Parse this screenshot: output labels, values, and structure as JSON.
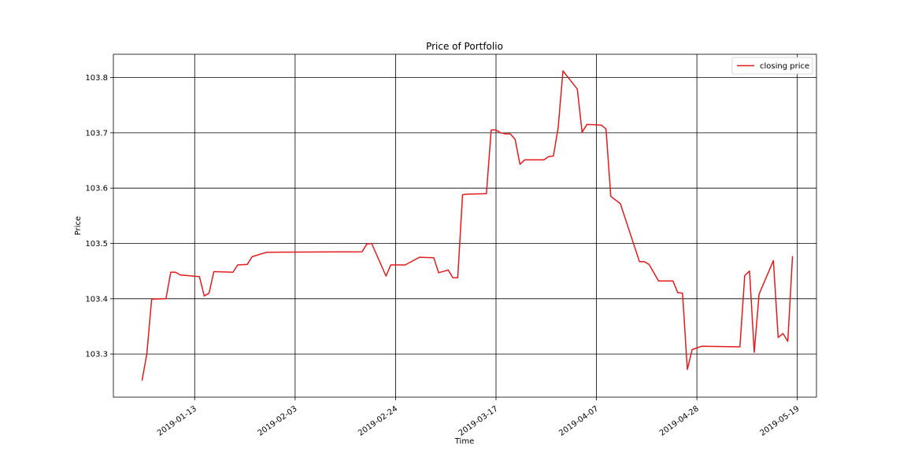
{
  "chart_data": {
    "type": "line",
    "title": "Price of Portfolio",
    "xlabel": "Time",
    "ylabel": "Price",
    "grid": true,
    "legend_position": "top-right",
    "xlim": [
      "2018-12-27",
      "2019-05-23"
    ],
    "ylim": [
      103.222,
      103.842
    ],
    "x_ticks": [
      "2019-01-13",
      "2019-02-03",
      "2019-02-24",
      "2019-03-17",
      "2019-04-07",
      "2019-04-28",
      "2019-05-19"
    ],
    "y_ticks": [
      "103.3",
      "103.4",
      "103.5",
      "103.6",
      "103.7",
      "103.8"
    ],
    "series": [
      {
        "name": "closing price",
        "color": "#e41a1c",
        "points": [
          [
            "2019-01-02",
            103.252
          ],
          [
            "2019-01-03",
            103.3
          ],
          [
            "2019-01-04",
            103.399
          ],
          [
            "2019-01-07",
            103.4
          ],
          [
            "2019-01-08",
            103.448
          ],
          [
            "2019-01-09",
            103.448
          ],
          [
            "2019-01-10",
            103.443
          ],
          [
            "2019-01-14",
            103.44
          ],
          [
            "2019-01-15",
            103.405
          ],
          [
            "2019-01-16",
            103.41
          ],
          [
            "2019-01-17",
            103.449
          ],
          [
            "2019-01-21",
            103.448
          ],
          [
            "2019-01-22",
            103.461
          ],
          [
            "2019-01-24",
            103.462
          ],
          [
            "2019-01-25",
            103.476
          ],
          [
            "2019-01-28",
            103.484
          ],
          [
            "2019-02-17",
            103.485
          ],
          [
            "2019-02-18",
            103.499
          ],
          [
            "2019-02-19",
            103.5
          ],
          [
            "2019-02-22",
            103.441
          ],
          [
            "2019-02-23",
            103.461
          ],
          [
            "2019-02-26",
            103.461
          ],
          [
            "2019-03-01",
            103.475
          ],
          [
            "2019-03-04",
            103.474
          ],
          [
            "2019-03-05",
            103.447
          ],
          [
            "2019-03-07",
            103.452
          ],
          [
            "2019-03-08",
            103.438
          ],
          [
            "2019-03-09",
            103.438
          ],
          [
            "2019-03-10",
            103.588
          ],
          [
            "2019-03-11",
            103.589
          ],
          [
            "2019-03-15",
            103.59
          ],
          [
            "2019-03-16",
            103.705
          ],
          [
            "2019-03-17",
            103.705
          ],
          [
            "2019-03-18",
            103.7
          ],
          [
            "2019-03-19",
            103.698
          ],
          [
            "2019-03-20",
            103.698
          ],
          [
            "2019-03-21",
            103.688
          ],
          [
            "2019-03-22",
            103.643
          ],
          [
            "2019-03-23",
            103.651
          ],
          [
            "2019-03-27",
            103.651
          ],
          [
            "2019-03-28",
            103.657
          ],
          [
            "2019-03-29",
            103.658
          ],
          [
            "2019-03-30",
            103.71
          ],
          [
            "2019-03-31",
            103.812
          ],
          [
            "2019-04-03",
            103.779
          ],
          [
            "2019-04-04",
            103.701
          ],
          [
            "2019-04-05",
            103.715
          ],
          [
            "2019-04-08",
            103.714
          ],
          [
            "2019-04-09",
            103.707
          ],
          [
            "2019-04-10",
            103.585
          ],
          [
            "2019-04-12",
            103.572
          ],
          [
            "2019-04-16",
            103.467
          ],
          [
            "2019-04-17",
            103.467
          ],
          [
            "2019-04-18",
            103.462
          ],
          [
            "2019-04-20",
            103.432
          ],
          [
            "2019-04-23",
            103.432
          ],
          [
            "2019-04-24",
            103.411
          ],
          [
            "2019-04-25",
            103.41
          ],
          [
            "2019-04-26",
            103.272
          ],
          [
            "2019-04-27",
            103.308
          ],
          [
            "2019-04-29",
            103.314
          ],
          [
            "2019-05-07",
            103.313
          ],
          [
            "2019-05-08",
            103.442
          ],
          [
            "2019-05-09",
            103.45
          ],
          [
            "2019-05-10",
            103.303
          ],
          [
            "2019-05-11",
            103.408
          ],
          [
            "2019-05-14",
            103.469
          ],
          [
            "2019-05-15",
            103.33
          ],
          [
            "2019-05-16",
            103.337
          ],
          [
            "2019-05-17",
            103.323
          ],
          [
            "2019-05-18",
            103.477
          ]
        ]
      }
    ]
  }
}
